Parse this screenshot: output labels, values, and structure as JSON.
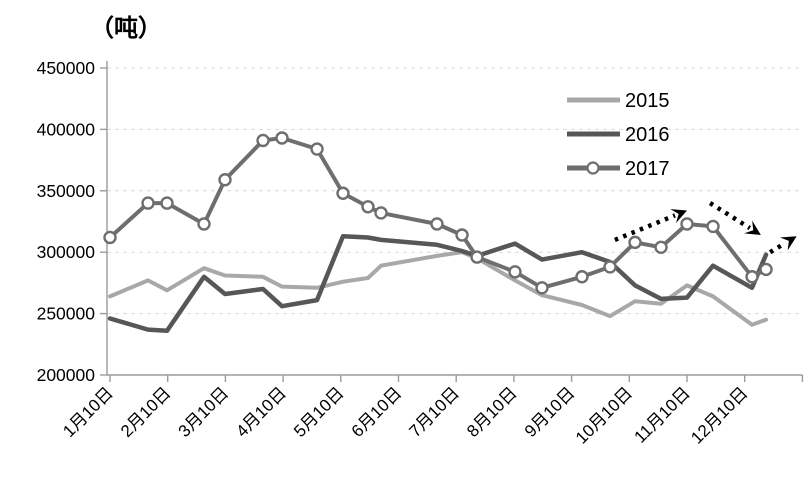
{
  "chart_data": {
    "type": "line",
    "title": "（吨）",
    "unit_label": "吨",
    "grid": "horizontal-dashed",
    "legend_position": "upper-right-inside",
    "legend_entries": [
      "2015",
      "2016",
      "2017"
    ],
    "x_tick_labels": [
      "1月10日",
      "2月10日",
      "3月10日",
      "4月10日",
      "5月10日",
      "6月10日",
      "7月10日",
      "8月10日",
      "9月10日",
      "10月10日",
      "11月10日",
      "12月10日"
    ],
    "y_ticks": [
      450000,
      400000,
      350000,
      300000,
      250000,
      200000
    ],
    "ylim": [
      200000,
      450000
    ],
    "xlim_months": [
      1,
      13
    ],
    "x_positions": [
      1.0,
      1.659,
      1.988,
      2.629,
      2.993,
      3.652,
      3.981,
      4.588,
      5.038,
      5.471,
      5.697,
      6.667,
      7.101,
      7.361,
      8.019,
      8.487,
      9.18,
      9.666,
      10.099,
      10.55,
      11.0,
      11.451,
      12.127,
      12.37
    ],
    "series": [
      {
        "name": "2015",
        "color": "#a8a8a8",
        "marker": "none",
        "line_width": 4,
        "values": [
          264000,
          277000,
          269000,
          287000,
          281000,
          280000,
          272000,
          271000,
          276000,
          279000,
          289000,
          297000,
          300000,
          295000,
          277000,
          265000,
          257000,
          248000,
          260000,
          258000,
          273000,
          264000,
          241000,
          245000
        ]
      },
      {
        "name": "2016",
        "color": "#575757",
        "marker": "none",
        "line_width": 4.5,
        "values": [
          246000,
          237000,
          236000,
          280000,
          266000,
          270000,
          256000,
          261000,
          313000,
          312000,
          310000,
          306000,
          301000,
          297000,
          307000,
          294000,
          300000,
          292000,
          273000,
          262000,
          263000,
          289000,
          271000,
          298000
        ]
      },
      {
        "name": "2017",
        "color": "#6e6e6e",
        "marker": "open-circle",
        "line_width": 4,
        "values": [
          312000,
          340000,
          340000,
          323000,
          359000,
          391000,
          393000,
          384000,
          348000,
          337000,
          332000,
          323000,
          314000,
          296000,
          284000,
          271000,
          280000,
          288000,
          308000,
          304000,
          323000,
          321000,
          280000,
          286000
        ]
      }
    ],
    "annotations": [
      {
        "type": "arrow",
        "style": "dotted",
        "color": "#000000",
        "from": {
          "x": 9.75,
          "y": 310000
        },
        "to": {
          "x": 11.0,
          "y": 334000
        }
      },
      {
        "type": "arrow",
        "style": "dotted",
        "color": "#000000",
        "from": {
          "x": 11.4,
          "y": 340000
        },
        "to": {
          "x": 12.28,
          "y": 314000
        }
      },
      {
        "type": "arrow",
        "style": "dotted",
        "color": "#000000",
        "from": {
          "x": 12.44,
          "y": 300000
        },
        "to": {
          "x": 12.9,
          "y": 313000
        }
      }
    ]
  }
}
